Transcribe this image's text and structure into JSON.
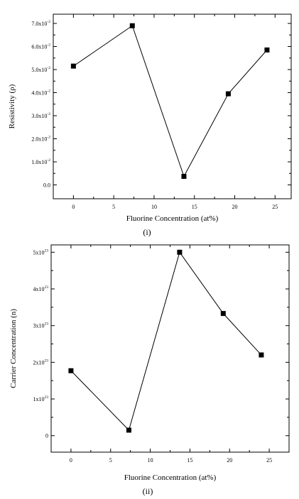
{
  "chart_data": [
    {
      "type": "line",
      "caption": "(i)",
      "xlabel": "Fluorine Concentration (at%)",
      "ylabel": "Resistivity (ρ)",
      "xlim": [
        -2.5,
        27
      ],
      "ylim": [
        -0.006,
        0.074
      ],
      "x_ticks": [
        "0",
        "5",
        "10",
        "15",
        "20",
        "25"
      ],
      "y_ticks": [
        {
          "mantissa": "0.0",
          "exp": ""
        },
        {
          "mantissa": "1.0x10",
          "exp": "-2"
        },
        {
          "mantissa": "2.0x10",
          "exp": "-2"
        },
        {
          "mantissa": "3.0x10",
          "exp": "-2"
        },
        {
          "mantissa": "4.0x10",
          "exp": "-2"
        },
        {
          "mantissa": "5.0x10",
          "exp": "-2"
        },
        {
          "mantissa": "6.0x10",
          "exp": "-2"
        },
        {
          "mantissa": "7.0x10",
          "exp": "-2"
        }
      ],
      "x_tick_values": [
        0,
        5,
        10,
        15,
        20,
        25
      ],
      "y_tick_values": [
        0,
        0.01,
        0.02,
        0.03,
        0.04,
        0.05,
        0.06,
        0.07
      ],
      "x": [
        0,
        7.3,
        13.7,
        19.2,
        24
      ],
      "y": [
        0.0515,
        0.069,
        0.0037,
        0.0395,
        0.0585
      ],
      "grid": false,
      "marker": "square"
    },
    {
      "type": "line",
      "caption": "(ii)",
      "xlabel": "Fluorine Concentration (at%)",
      "ylabel": "Carrier Concentration (n)",
      "xlim": [
        -2.5,
        27.5
      ],
      "ylim": [
        -4.5e+22,
        5.2e+23
      ],
      "x_ticks": [
        "0",
        "5",
        "10",
        "15",
        "20",
        "25"
      ],
      "y_ticks": [
        {
          "mantissa": "0",
          "exp": ""
        },
        {
          "mantissa": "1x10",
          "exp": "23"
        },
        {
          "mantissa": "2x10",
          "exp": "23"
        },
        {
          "mantissa": "3x10",
          "exp": "23"
        },
        {
          "mantissa": "4x10",
          "exp": "23"
        },
        {
          "mantissa": "5x10",
          "exp": "23"
        }
      ],
      "x_tick_values": [
        0,
        5,
        10,
        15,
        20,
        25
      ],
      "y_tick_values": [
        0,
        1e+23,
        2e+23,
        3e+23,
        4e+23,
        5e+23
      ],
      "x": [
        0,
        7.3,
        13.7,
        19.2,
        24
      ],
      "y": [
        1.77e+23,
        1.5e+22,
        5e+23,
        3.33e+23,
        2.2e+23
      ],
      "grid": false,
      "marker": "square"
    }
  ]
}
